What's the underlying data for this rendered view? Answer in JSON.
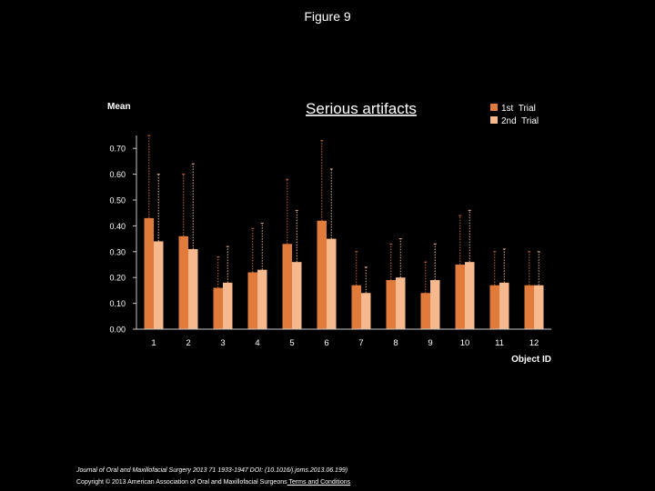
{
  "page": {
    "figure_title": "Figure 9",
    "citation_journal": "Journal of Oral and Maxillofacial Surgery",
    "citation_rest": " 2013 71 1933-1947 DOI: (10.1016/j.joms.2013.06.199)",
    "copyright": "Copyright © 2013 American Association of Oral and Maxillofacial Surgeons",
    "terms_link": " Terms and Conditions"
  },
  "colors": {
    "trial1": "#e07b3c",
    "trial2": "#f6b98e",
    "errorbar_dark": "#c7683a",
    "errorbar_light": "#e8b090",
    "axis": "#c8c8c8",
    "chart_bg": "#000000"
  },
  "chart_data": {
    "type": "bar",
    "title": "Serious artifacts",
    "ylabel": "Mean",
    "xlabel": "Object ID",
    "ylim": [
      0,
      0.75
    ],
    "yticks": [
      "0.00",
      "0.10",
      "0.20",
      "0.30",
      "0.40",
      "0.50",
      "0.60",
      "0.70"
    ],
    "categories": [
      "1",
      "2",
      "3",
      "4",
      "5",
      "6",
      "7",
      "8",
      "9",
      "10",
      "11",
      "12"
    ],
    "legend_position": "top-right",
    "series": [
      {
        "name": "1st  Trial",
        "values": [
          0.43,
          0.36,
          0.16,
          0.22,
          0.33,
          0.42,
          0.17,
          0.19,
          0.14,
          0.25,
          0.17,
          0.17
        ],
        "error_top": [
          0.75,
          0.6,
          0.28,
          0.39,
          0.58,
          0.73,
          0.3,
          0.33,
          0.26,
          0.44,
          0.3,
          0.3
        ]
      },
      {
        "name": "2nd  Trial",
        "values": [
          0.34,
          0.31,
          0.18,
          0.23,
          0.26,
          0.35,
          0.14,
          0.2,
          0.19,
          0.26,
          0.18,
          0.17
        ],
        "error_top": [
          0.6,
          0.64,
          0.32,
          0.41,
          0.46,
          0.62,
          0.24,
          0.35,
          0.33,
          0.46,
          0.31,
          0.3
        ]
      }
    ]
  }
}
